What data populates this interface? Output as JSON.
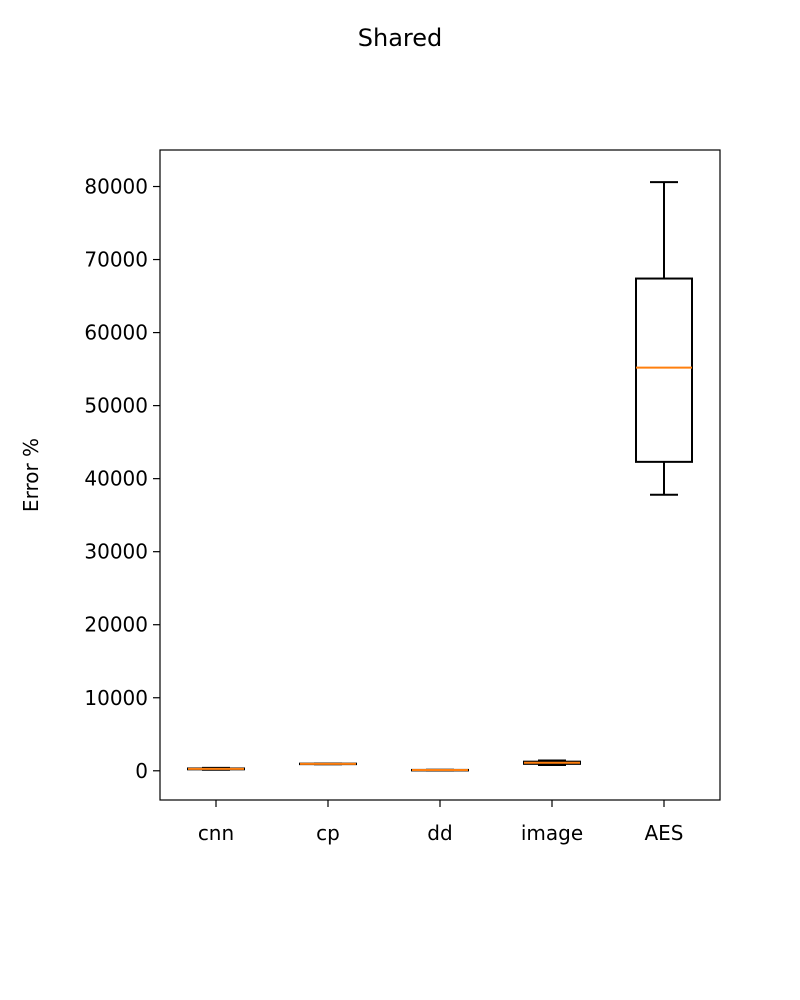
{
  "chart_data": {
    "type": "box",
    "title": "Shared",
    "xlabel": "",
    "ylabel": "Error %",
    "ylim": [
      -4000,
      85000
    ],
    "yticks": [
      0,
      10000,
      20000,
      30000,
      40000,
      50000,
      60000,
      70000,
      80000
    ],
    "ytick_labels": [
      "0",
      "10000",
      "20000",
      "30000",
      "40000",
      "50000",
      "60000",
      "70000",
      "80000"
    ],
    "categories": [
      "cnn",
      "cp",
      "dd",
      "image",
      "AES"
    ],
    "boxes": [
      {
        "label": "cnn",
        "whislo": 150,
        "q1": 200,
        "med": 260,
        "q3": 320,
        "whishi": 400
      },
      {
        "label": "cp",
        "whislo": 900,
        "q1": 920,
        "med": 950,
        "q3": 980,
        "whishi": 1000
      },
      {
        "label": "dd",
        "whislo": 60,
        "q1": 80,
        "med": 100,
        "q3": 120,
        "whishi": 140
      },
      {
        "label": "image",
        "whislo": 800,
        "q1": 950,
        "med": 1100,
        "q3": 1250,
        "whishi": 1400
      },
      {
        "label": "AES",
        "whislo": 37800,
        "q1": 42300,
        "med": 55200,
        "q3": 67400,
        "whishi": 80600
      }
    ],
    "grid": false,
    "legend": "none",
    "colors": {
      "box": "#000000",
      "median": "#ff7f0e"
    }
  }
}
